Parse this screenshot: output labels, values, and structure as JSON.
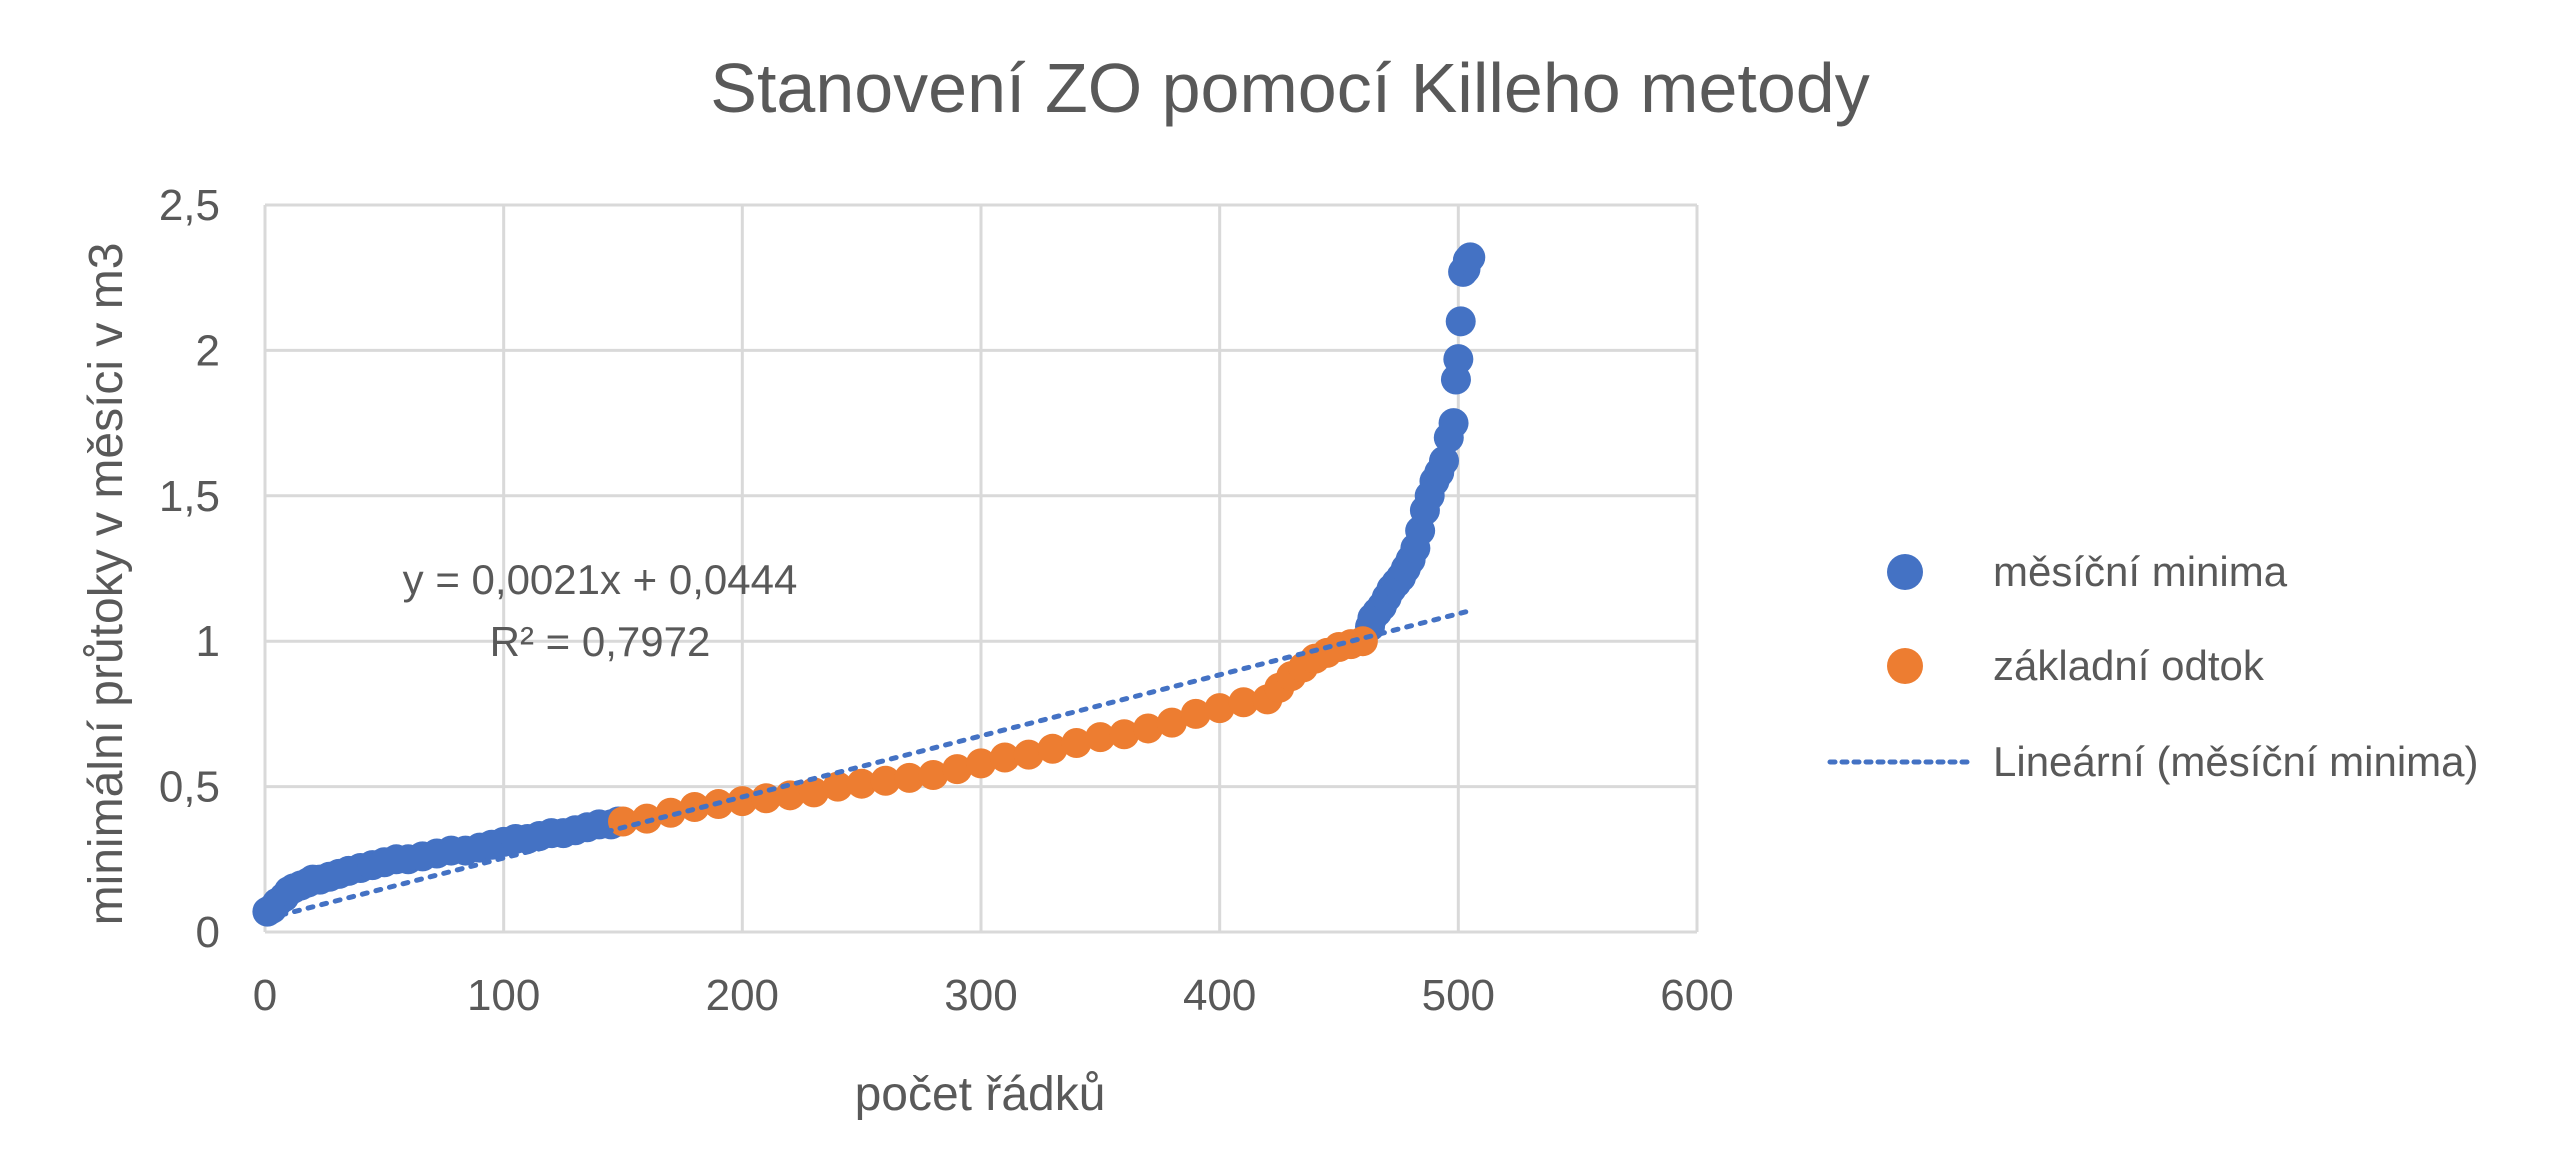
{
  "chart_data": {
    "type": "scatter",
    "title": "Stanovení ZO pomocí Killeho metody",
    "xlabel": "počet řádků",
    "ylabel": "minimální průtoky v měsíci v m3",
    "xlim": [
      0,
      600
    ],
    "ylim": [
      0,
      2.5
    ],
    "x_ticks": [
      "0",
      "100",
      "200",
      "300",
      "400",
      "500",
      "600"
    ],
    "y_ticks": [
      "0",
      "0,5",
      "1",
      "1,5",
      "2",
      "2,5"
    ],
    "grid": true,
    "legend_position": "right",
    "colors": {
      "blue": "#4472C4",
      "orange": "#ED7D31",
      "text": "#595959",
      "grid": "#D9D9D9"
    },
    "series": [
      {
        "name": "měsíční minima",
        "color": "#4472C4",
        "x": [
          1,
          3,
          5,
          8,
          10,
          12,
          15,
          18,
          20,
          23,
          27,
          31,
          35,
          40,
          45,
          50,
          55,
          60,
          66,
          72,
          78,
          84,
          90,
          95,
          100,
          105,
          110,
          115,
          120,
          125,
          130,
          135,
          140,
          145,
          148,
          463,
          464,
          466,
          468,
          470,
          472,
          474,
          476,
          478,
          480,
          482,
          484,
          486,
          488,
          490,
          492,
          494,
          496,
          498,
          499,
          500,
          501,
          502,
          503,
          504,
          505
        ],
        "y": [
          0.07,
          0.08,
          0.1,
          0.12,
          0.14,
          0.15,
          0.16,
          0.17,
          0.18,
          0.18,
          0.19,
          0.2,
          0.21,
          0.22,
          0.23,
          0.24,
          0.25,
          0.25,
          0.26,
          0.27,
          0.28,
          0.28,
          0.29,
          0.3,
          0.31,
          0.32,
          0.32,
          0.33,
          0.34,
          0.34,
          0.35,
          0.36,
          0.37,
          0.37,
          0.38,
          1.05,
          1.08,
          1.1,
          1.12,
          1.15,
          1.18,
          1.2,
          1.22,
          1.25,
          1.28,
          1.32,
          1.38,
          1.45,
          1.5,
          1.55,
          1.58,
          1.62,
          1.7,
          1.75,
          1.9,
          1.97,
          2.1,
          2.27,
          2.28,
          2.31,
          2.32
        ]
      },
      {
        "name": "základní odtok",
        "color": "#ED7D31",
        "x": [
          150,
          160,
          170,
          180,
          190,
          200,
          210,
          220,
          230,
          240,
          250,
          260,
          270,
          280,
          290,
          300,
          310,
          320,
          330,
          340,
          350,
          360,
          370,
          380,
          390,
          400,
          410,
          420,
          425,
          430,
          435,
          440,
          445,
          450,
          455,
          460
        ],
        "y": [
          0.38,
          0.39,
          0.41,
          0.43,
          0.44,
          0.45,
          0.46,
          0.47,
          0.48,
          0.5,
          0.51,
          0.52,
          0.53,
          0.54,
          0.56,
          0.58,
          0.6,
          0.61,
          0.63,
          0.65,
          0.67,
          0.68,
          0.7,
          0.72,
          0.75,
          0.77,
          0.79,
          0.8,
          0.84,
          0.88,
          0.91,
          0.94,
          0.96,
          0.98,
          0.99,
          1.0
        ]
      }
    ],
    "trendline": {
      "name": "Lineární (měsíční minima)",
      "slope": 0.0021,
      "intercept": 0.0444,
      "x_range": [
        1,
        505
      ],
      "color": "#4472C4",
      "style": "dotted",
      "equation": "y = 0,0021x + 0,0444",
      "r2": "R² = 0,7972"
    }
  }
}
